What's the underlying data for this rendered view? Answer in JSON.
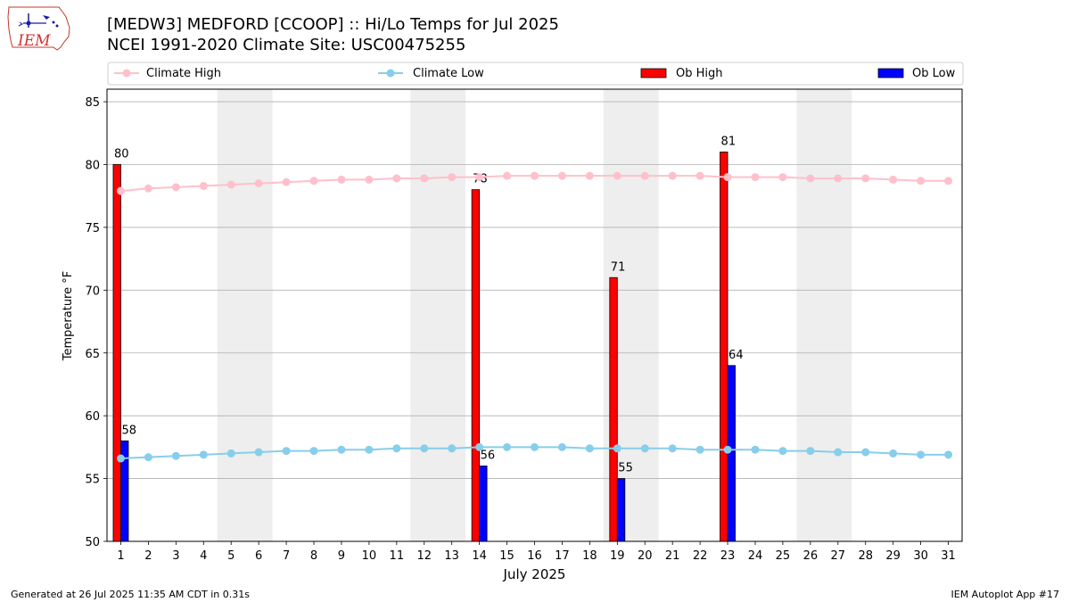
{
  "header": {
    "title_line1": "[MEDW3] MEDFORD [CCOOP] :: Hi/Lo Temps for Jul 2025",
    "title_line2": "NCEI 1991-2020 Climate Site: USC00475255"
  },
  "logo": {
    "text": "IEM",
    "icon": "iem-iowa-logo"
  },
  "footer": {
    "left": "Generated at 26 Jul 2025 11:35 AM CDT in 0.31s",
    "right": "IEM Autoplot App #17"
  },
  "colors": {
    "climate_high": "#ffc0cb",
    "climate_low": "#87ceeb",
    "ob_high": "#ff0000",
    "ob_low": "#0000ff",
    "weekend_shade": "#eeeeee",
    "grid": "#b0b0b0"
  },
  "chart_data": {
    "type": "bar",
    "xlabel": "July 2025",
    "ylabel": "Temperature °F",
    "xlim": [
      0.5,
      31.5
    ],
    "ylim": [
      50,
      86
    ],
    "y_ticks": [
      50,
      55,
      60,
      65,
      70,
      75,
      80,
      85
    ],
    "x_ticks": [
      1,
      2,
      3,
      4,
      5,
      6,
      7,
      8,
      9,
      10,
      11,
      12,
      13,
      14,
      15,
      16,
      17,
      18,
      19,
      20,
      21,
      22,
      23,
      24,
      25,
      26,
      27,
      28,
      29,
      30,
      31
    ],
    "grid": "horizontal",
    "legend_placement": "top, above plot",
    "weekend_shading": [
      [
        5,
        6
      ],
      [
        12,
        13
      ],
      [
        19,
        20
      ],
      [
        26,
        27
      ]
    ],
    "days": [
      1,
      2,
      3,
      4,
      5,
      6,
      7,
      8,
      9,
      10,
      11,
      12,
      13,
      14,
      15,
      16,
      17,
      18,
      19,
      20,
      21,
      22,
      23,
      24,
      25,
      26,
      27,
      28,
      29,
      30,
      31
    ],
    "series": [
      {
        "name": "Climate High",
        "kind": "line",
        "values": [
          77.9,
          78.1,
          78.2,
          78.3,
          78.4,
          78.5,
          78.6,
          78.7,
          78.8,
          78.8,
          78.9,
          78.9,
          79.0,
          79.0,
          79.1,
          79.1,
          79.1,
          79.1,
          79.1,
          79.1,
          79.1,
          79.1,
          79.0,
          79.0,
          79.0,
          78.9,
          78.9,
          78.9,
          78.8,
          78.7,
          78.7
        ]
      },
      {
        "name": "Climate Low",
        "kind": "line",
        "values": [
          56.6,
          56.7,
          56.8,
          56.9,
          57.0,
          57.1,
          57.2,
          57.2,
          57.3,
          57.3,
          57.4,
          57.4,
          57.4,
          57.5,
          57.5,
          57.5,
          57.5,
          57.4,
          57.4,
          57.4,
          57.4,
          57.3,
          57.3,
          57.3,
          57.2,
          57.2,
          57.1,
          57.1,
          57.0,
          56.9,
          56.9
        ]
      },
      {
        "name": "Ob High",
        "kind": "bar",
        "points": [
          {
            "day": 1,
            "value": 80
          },
          {
            "day": 14,
            "value": 78
          },
          {
            "day": 19,
            "value": 71
          },
          {
            "day": 23,
            "value": 81
          }
        ]
      },
      {
        "name": "Ob Low",
        "kind": "bar",
        "points": [
          {
            "day": 1,
            "value": 58
          },
          {
            "day": 14,
            "value": 56
          },
          {
            "day": 19,
            "value": 55
          },
          {
            "day": 23,
            "value": 64
          }
        ]
      }
    ]
  }
}
